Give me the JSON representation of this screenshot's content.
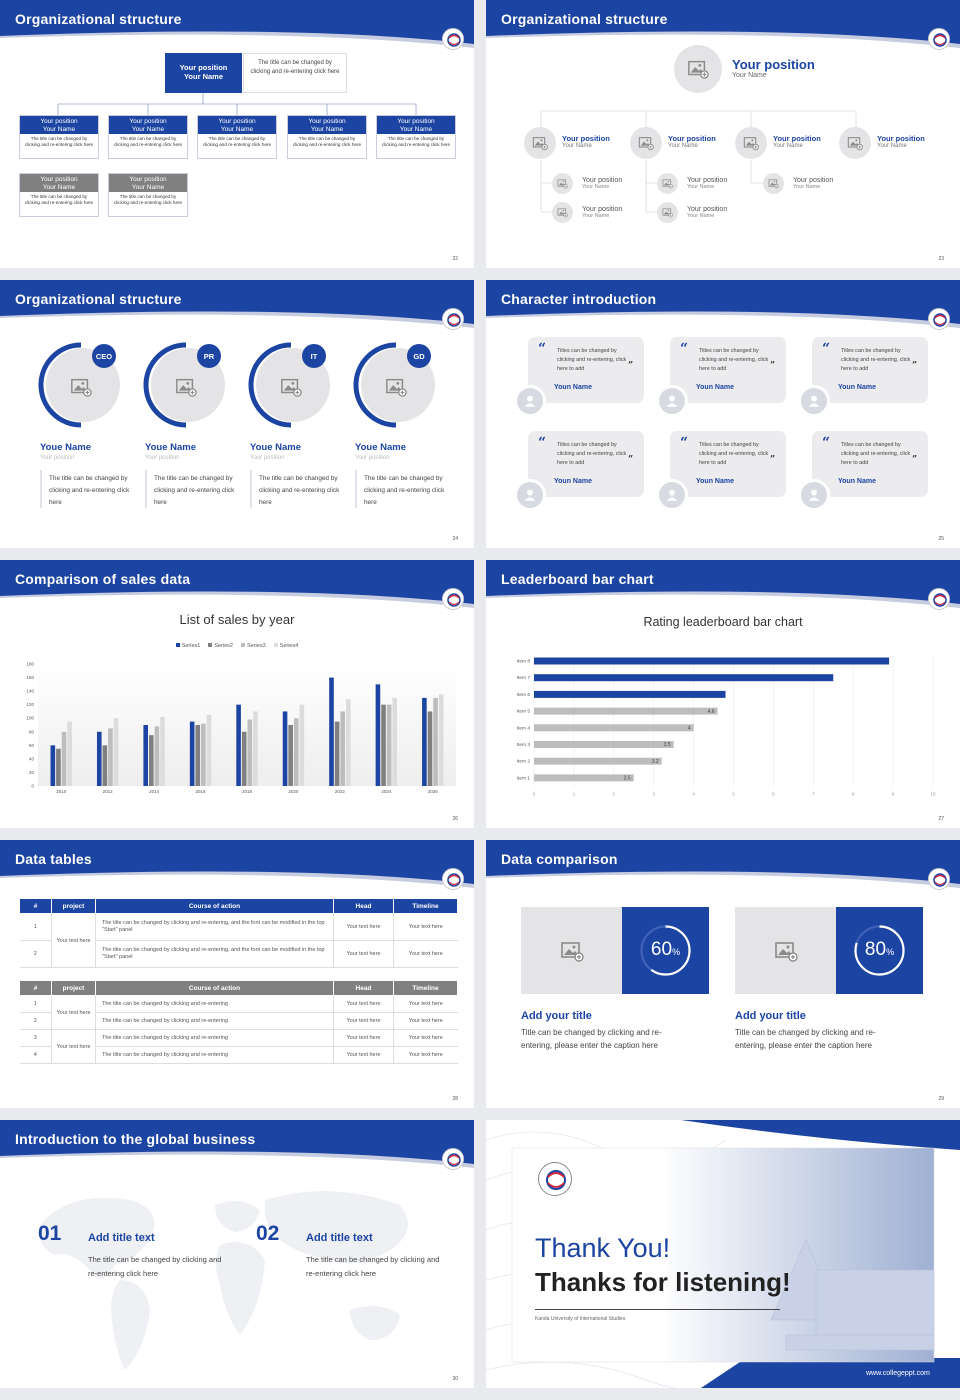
{
  "colors": {
    "primary": "#1c44a2",
    "grey": "#808080",
    "light": "#e4e4e6"
  },
  "slides": {
    "s22": {
      "title": "Organizational structure",
      "page": "22",
      "top": {
        "pos": "Your position",
        "name": "Your Name",
        "desc": "The title can be changed by clicking and re-entering click here"
      },
      "row1": [
        {
          "pos": "Your position",
          "name": "Your Name",
          "desc": "The title can be changed by clicking and re-entering click here"
        },
        {
          "pos": "Your position",
          "name": "Your Name",
          "desc": "The title can be changed by clicking and re-entering click here"
        },
        {
          "pos": "Your position",
          "name": "Your Name",
          "desc": "The title can be changed by clicking and re-entering click here"
        },
        {
          "pos": "Your position",
          "name": "Your Name",
          "desc": "The title can be changed by clicking and re-entering click here"
        },
        {
          "pos": "Your position",
          "name": "Your Name",
          "desc": "The title can be changed by clicking and re-entering click here"
        }
      ],
      "row2": [
        {
          "pos": "Your position",
          "name": "Your Name",
          "desc": "The title can be changed by clicking and re-entering click here"
        },
        {
          "pos": "Your position",
          "name": "Your Name",
          "desc": "The title can be changed by clicking and re-entering click here"
        }
      ]
    },
    "s23": {
      "title": "Organizational structure",
      "page": "23",
      "top": {
        "pos": "Your position",
        "name": "Your Name"
      },
      "row": [
        {
          "pos": "Your position",
          "name": "Your Name"
        },
        {
          "pos": "Your position",
          "name": "Your Name"
        },
        {
          "pos": "Your position",
          "name": "Your Name"
        },
        {
          "pos": "Your position",
          "name": "Your Name"
        }
      ],
      "sub": [
        {
          "pos": "Your position",
          "name": "Your Name"
        },
        {
          "pos": "Your position",
          "name": "Your Name"
        },
        {
          "pos": "Your position",
          "name": "Your Name"
        },
        {
          "pos": "Your position",
          "name": "Your Name"
        },
        {
          "pos": "Your position",
          "name": "Your Name"
        }
      ]
    },
    "s24": {
      "title": "Organizational structure",
      "page": "24",
      "people": [
        {
          "badge": "CEO",
          "name": "Youe Name",
          "pos": "Your position",
          "desc": "The title can be changed by clicking and re-entering click here"
        },
        {
          "badge": "PR",
          "name": "Youe Name",
          "pos": "Your position",
          "desc": "The title can be changed by clicking and re-entering click here"
        },
        {
          "badge": "IT",
          "name": "Youe Name",
          "pos": "Your position",
          "desc": "The title can be changed by clicking and re-entering click here"
        },
        {
          "badge": "GD",
          "name": "Youe Name",
          "pos": "Your position",
          "desc": "The title can be changed by clicking and re-entering click here"
        }
      ]
    },
    "s25": {
      "title": "Character introduction",
      "page": "25",
      "cards": [
        {
          "text": "Titles can be changed by clicking and re-entering, click here to add",
          "name": "Youn Name"
        },
        {
          "text": "Titles can be changed by clicking and re-entering, click here to add",
          "name": "Youn Name"
        },
        {
          "text": "Titles can be changed by clicking and re-entering, click here to add",
          "name": "Youn Name"
        },
        {
          "text": "Titles can be changed by clicking and re-entering, click here to add",
          "name": "Youn Name"
        },
        {
          "text": "Titles can be changed by clicking and re-entering, click here to add",
          "name": "Youn Name"
        },
        {
          "text": "Titles can be changed by clicking and re-entering, click here to add",
          "name": "Youn Name"
        }
      ]
    },
    "s26": {
      "title": "Comparison of sales data",
      "page": "26"
    },
    "s27": {
      "title": "Leaderboard bar chart",
      "page": "27"
    },
    "s28": {
      "title": "Data tables",
      "page": "28",
      "t1": {
        "headers": [
          "#",
          "project",
          "Course of action",
          "Head",
          "Timeline"
        ],
        "merged": "Your text here",
        "rows": [
          {
            "n": "1",
            "c": "The title can be changed by clicking and re-entering, and the font can be modified in the top \"Start\" panel",
            "h": "Your text here",
            "t": "Your text here"
          },
          {
            "n": "2",
            "c": "The title can be changed by clicking and re-entering, and the font can be modified in the top \"Start\" panel",
            "h": "Your text here",
            "t": "Your text here"
          }
        ]
      },
      "t2": {
        "headers": [
          "#",
          "project",
          "Course of action",
          "Head",
          "Timeline"
        ],
        "merged1": "Your text here",
        "merged2": "Your text here",
        "rows": [
          {
            "n": "1",
            "c": "The title can be changed by clicking and re-entering",
            "h": "Your text here",
            "t": "Your text here"
          },
          {
            "n": "2",
            "c": "The title can be changed by clicking and re-entering",
            "h": "Your text here",
            "t": "Your text here"
          },
          {
            "n": "3",
            "c": "The title can be changed by clicking and re-entering",
            "h": "Your text here",
            "t": "Your text here"
          },
          {
            "n": "4",
            "c": "The title can be changed by clicking and re-entering",
            "h": "Your text here",
            "t": "Your text here"
          }
        ]
      }
    },
    "s29": {
      "title": "Data comparison",
      "page": "29",
      "items": [
        {
          "pct": "60",
          "unit": "%",
          "value": 0.6,
          "title": "Add your title",
          "desc": "Title can be changed by clicking and re-entering, please enter the caption here"
        },
        {
          "pct": "80",
          "unit": "%",
          "value": 0.8,
          "title": "Add your title",
          "desc": "Title can be changed by clicking and re-entering, please enter the caption here"
        }
      ]
    },
    "s30": {
      "title": "Introduction to the global business",
      "page": "30",
      "items": [
        {
          "num": "01",
          "title": "Add title text",
          "desc": "The title can be changed by clicking and re-entering click here"
        },
        {
          "num": "02",
          "title": "Add title text",
          "desc": "The title can be changed by clicking and re-entering click here"
        }
      ]
    },
    "s31": {
      "thank": "Thank You!",
      "thanks": "Thanks for listening!",
      "school": "Kanda University of International Studies",
      "url": "www.collegeppt.com"
    }
  },
  "chart_data": [
    {
      "type": "bar",
      "title": "List of sales by year",
      "categories": [
        "2010",
        "2012",
        "2014",
        "2016",
        "2018",
        "2020",
        "2022",
        "2024",
        "2026"
      ],
      "series": [
        {
          "name": "Series1",
          "color": "#1c44a2",
          "values": [
            60,
            80,
            90,
            95,
            120,
            110,
            160,
            150,
            130
          ]
        },
        {
          "name": "Series2",
          "color": "#808080",
          "values": [
            55,
            60,
            75,
            90,
            80,
            90,
            95,
            120,
            110
          ]
        },
        {
          "name": "Series3",
          "color": "#bdbdbd",
          "values": [
            80,
            85,
            88,
            92,
            98,
            100,
            110,
            120,
            130
          ]
        },
        {
          "name": "Series4",
          "color": "#dcdcdc",
          "values": [
            95,
            100,
            102,
            105,
            110,
            120,
            128,
            130,
            135
          ]
        }
      ],
      "ylim": [
        0,
        180
      ],
      "yticks": [
        0,
        20,
        40,
        60,
        80,
        100,
        120,
        140,
        160,
        180
      ],
      "legend": "top",
      "grid": false
    },
    {
      "type": "bar",
      "orientation": "horizontal",
      "title": "Rating leaderboard bar chart",
      "categories": [
        "Item 8",
        "Item 7",
        "Item 6",
        "Item 5",
        "Item 4",
        "Item 3",
        "Item 2",
        "Item 1"
      ],
      "values": [
        8.9,
        7.5,
        4.8,
        4.6,
        4,
        3.5,
        3.2,
        2.5
      ],
      "labels": [
        "",
        "",
        "",
        "4.6",
        "4",
        "3.5",
        "3.2",
        "2.5"
      ],
      "colors": [
        "#1c44a2",
        "#1c44a2",
        "#1c44a2",
        "#bdbdbd",
        "#bdbdbd",
        "#bdbdbd",
        "#bdbdbd",
        "#bdbdbd"
      ],
      "xlim": [
        0,
        10
      ],
      "xticks": [
        "0",
        "1",
        "2",
        "3",
        "4",
        "5",
        "6",
        "7",
        "8",
        "9",
        "10"
      ],
      "grid": true
    }
  ]
}
